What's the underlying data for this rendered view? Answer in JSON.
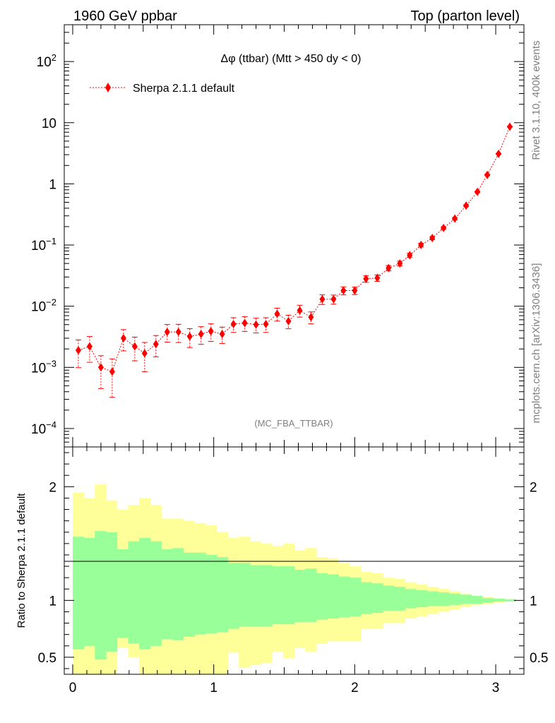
{
  "header": {
    "left": "1960 GeV ppbar",
    "right": "Top (parton level)"
  },
  "side_labels": {
    "rivet": "Rivet 3.1.10,  400k events",
    "mcplots": "mcplots.cern.ch [arXiv:1306.3436]"
  },
  "chart_data": [
    {
      "type": "line",
      "title": "Δφ (ttbar) (Mtt > 450 dy < 0)",
      "watermark": "(MC_FBA_TTBAR)",
      "y_scale": "log",
      "xlim": [
        -0.06,
        3.2
      ],
      "ylim": [
        5e-05,
        400
      ],
      "y_tick_labels": [
        "10^-4",
        "10^-3",
        "10^-2",
        "10^-1",
        "1",
        "10",
        "10^2"
      ],
      "legend_position": "top-left",
      "series": [
        {
          "name": "Sherpa 2.1.1 default",
          "color": "#ff0000",
          "marker": "diamond",
          "line": "dotted",
          "x": [
            0.04,
            0.12,
            0.2,
            0.28,
            0.36,
            0.44,
            0.51,
            0.59,
            0.67,
            0.75,
            0.83,
            0.91,
            0.98,
            1.06,
            1.14,
            1.22,
            1.3,
            1.37,
            1.45,
            1.53,
            1.61,
            1.69,
            1.77,
            1.85,
            1.92,
            2.0,
            2.08,
            2.16,
            2.24,
            2.32,
            2.39,
            2.47,
            2.55,
            2.63,
            2.71,
            2.79,
            2.87,
            2.94,
            3.02,
            3.1
          ],
          "y": [
            0.0019,
            0.0022,
            0.001,
            0.00085,
            0.003,
            0.0022,
            0.0017,
            0.0024,
            0.0038,
            0.0038,
            0.0032,
            0.0035,
            0.0039,
            0.0035,
            0.0051,
            0.0053,
            0.005,
            0.0051,
            0.0075,
            0.0057,
            0.0085,
            0.0066,
            0.013,
            0.013,
            0.018,
            0.018,
            0.028,
            0.029,
            0.042,
            0.05,
            0.068,
            0.1,
            0.13,
            0.19,
            0.27,
            0.44,
            0.74,
            1.4,
            3.1,
            8.6
          ],
          "y_err_rel": [
            0.48,
            0.45,
            0.55,
            0.62,
            0.38,
            0.42,
            0.5,
            0.38,
            0.32,
            0.33,
            0.34,
            0.32,
            0.32,
            0.3,
            0.27,
            0.27,
            0.27,
            0.27,
            0.24,
            0.25,
            0.22,
            0.22,
            0.18,
            0.17,
            0.15,
            0.14,
            0.12,
            0.12,
            0.1,
            0.09,
            0.08,
            0.07,
            0.06,
            0.05,
            0.045,
            0.04,
            0.03,
            0.025,
            0.02,
            0.015
          ]
        }
      ]
    },
    {
      "type": "area",
      "ylabel": "Ratio to Sherpa 2.1.1 default",
      "xlim": [
        -0.06,
        3.2
      ],
      "ylim": [
        0.35,
        2.35
      ],
      "x_ticks": [
        0,
        1,
        2,
        3
      ],
      "y_ticks": [
        0.5,
        1,
        2
      ],
      "reference_line": 1,
      "bands": [
        {
          "name": "outer",
          "color": "#ffff99",
          "edges": [
            0.0,
            0.079,
            0.157,
            0.236,
            0.314,
            0.393,
            0.471,
            0.55,
            0.628,
            0.707,
            0.785,
            0.864,
            0.942,
            1.021,
            1.1,
            1.178,
            1.257,
            1.335,
            1.414,
            1.492,
            1.571,
            1.649,
            1.728,
            1.806,
            1.885,
            1.963,
            2.042,
            2.12,
            2.199,
            2.277,
            2.356,
            2.434,
            2.513,
            2.591,
            2.67,
            2.748,
            2.827,
            2.905,
            2.985,
            3.063,
            3.142
          ],
          "upper": [
            1.95,
            1.9,
            2.02,
            1.88,
            1.8,
            1.84,
            1.9,
            1.84,
            1.72,
            1.72,
            1.7,
            1.68,
            1.66,
            1.6,
            1.55,
            1.56,
            1.52,
            1.5,
            1.48,
            1.5,
            1.44,
            1.46,
            1.38,
            1.37,
            1.33,
            1.3,
            1.25,
            1.24,
            1.2,
            1.19,
            1.16,
            1.14,
            1.12,
            1.1,
            1.08,
            1.06,
            1.04,
            1.03,
            1.02,
            1.01
          ],
          "lower": [
            0.2,
            0.3,
            0.35,
            0.3,
            0.58,
            0.5,
            0.32,
            0.3,
            0.3,
            0.3,
            0.3,
            0.3,
            0.32,
            0.3,
            0.54,
            0.41,
            0.43,
            0.45,
            0.55,
            0.49,
            0.58,
            0.55,
            0.62,
            0.64,
            0.64,
            0.64,
            0.75,
            0.75,
            0.8,
            0.8,
            0.84,
            0.86,
            0.88,
            0.9,
            0.92,
            0.94,
            0.96,
            0.97,
            0.98,
            0.99
          ]
        },
        {
          "name": "inner",
          "color": "#99ff99",
          "edges": [
            0.0,
            0.079,
            0.157,
            0.236,
            0.314,
            0.393,
            0.471,
            0.55,
            0.628,
            0.707,
            0.785,
            0.864,
            0.942,
            1.021,
            1.1,
            1.178,
            1.257,
            1.335,
            1.414,
            1.492,
            1.571,
            1.649,
            1.728,
            1.806,
            1.885,
            1.963,
            2.042,
            2.12,
            2.199,
            2.277,
            2.356,
            2.434,
            2.513,
            2.591,
            2.67,
            2.748,
            2.827,
            2.905,
            2.985,
            3.063,
            3.142
          ],
          "upper": [
            1.56,
            1.55,
            1.61,
            1.6,
            1.45,
            1.52,
            1.55,
            1.52,
            1.45,
            1.46,
            1.42,
            1.42,
            1.4,
            1.38,
            1.33,
            1.33,
            1.31,
            1.31,
            1.3,
            1.3,
            1.27,
            1.28,
            1.24,
            1.23,
            1.21,
            1.2,
            1.16,
            1.15,
            1.13,
            1.12,
            1.1,
            1.09,
            1.08,
            1.07,
            1.06,
            1.05,
            1.04,
            1.02,
            1.015,
            1.01
          ],
          "lower": [
            0.57,
            0.6,
            0.48,
            0.55,
            0.67,
            0.62,
            0.57,
            0.6,
            0.66,
            0.65,
            0.68,
            0.7,
            0.71,
            0.72,
            0.75,
            0.77,
            0.77,
            0.77,
            0.79,
            0.79,
            0.81,
            0.81,
            0.83,
            0.84,
            0.85,
            0.86,
            0.88,
            0.89,
            0.91,
            0.91,
            0.93,
            0.94,
            0.95,
            0.95,
            0.96,
            0.97,
            0.97,
            0.98,
            0.99,
            0.99
          ]
        }
      ]
    }
  ]
}
